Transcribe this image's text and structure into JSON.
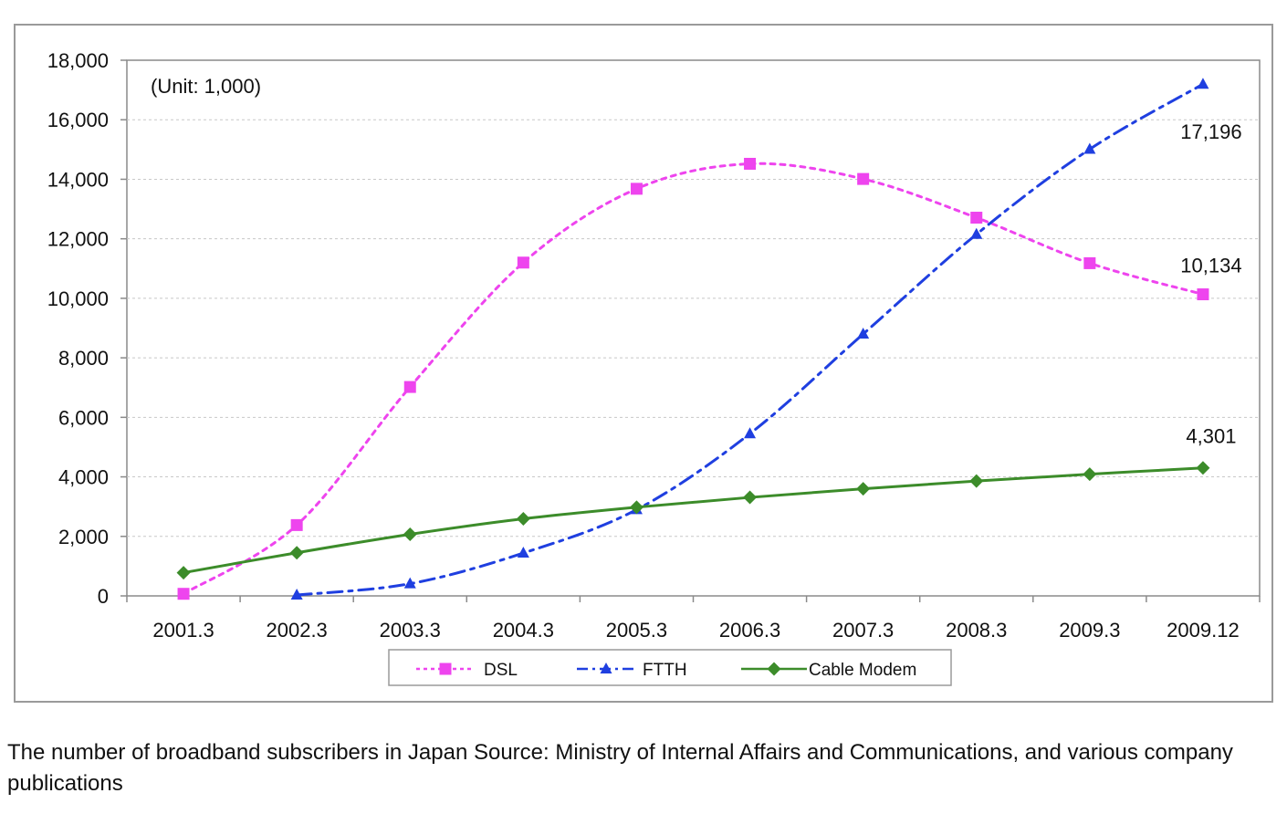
{
  "chart_data": {
    "type": "line",
    "unit_note": "(Unit: 1,000)",
    "categories": [
      "2001.3",
      "2002.3",
      "2003.3",
      "2004.3",
      "2005.3",
      "2006.3",
      "2007.3",
      "2008.3",
      "2009.3",
      "2009.12"
    ],
    "ylim": [
      0,
      18000
    ],
    "yticks": [
      0,
      2000,
      4000,
      6000,
      8000,
      10000,
      12000,
      14000,
      16000,
      18000
    ],
    "ytick_labels": [
      "0",
      "2,000",
      "4,000",
      "6,000",
      "8,000",
      "10,000",
      "12,000",
      "14,000",
      "16,000",
      "18,000"
    ],
    "grid": true,
    "legend_position": "bottom",
    "series": [
      {
        "name": "DSL",
        "color": "#ee44ee",
        "marker": "square",
        "dash": "dotted",
        "values": [
          70,
          2380,
          7020,
          11200,
          13680,
          14520,
          14010,
          12710,
          11180,
          10134
        ],
        "end_label": "10,134"
      },
      {
        "name": "FTTH",
        "color": "#1f3fe0",
        "marker": "triangle",
        "dash": "dashdot",
        "values": [
          null,
          30,
          410,
          1440,
          2900,
          5450,
          8800,
          12150,
          15010,
          17196
        ],
        "end_label": "17,196"
      },
      {
        "name": "Cable Modem",
        "color": "#3c8c2a",
        "marker": "diamond",
        "dash": "solid",
        "values": [
          780,
          1450,
          2070,
          2590,
          2980,
          3310,
          3600,
          3860,
          4090,
          4301
        ],
        "end_label": "4,301"
      }
    ]
  },
  "caption": "The number of broadband subscribers in Japan Source: Ministry of Internal Affairs and Communications, and various company publications"
}
